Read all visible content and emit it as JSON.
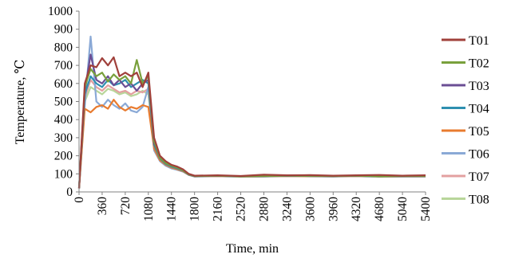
{
  "chart_data": {
    "type": "line",
    "title": "",
    "xlabel": "Time, min",
    "ylabel": "Temperature, ℃",
    "xlim": [
      0,
      5400
    ],
    "ylim": [
      0,
      1000
    ],
    "x_ticks": [
      0,
      360,
      720,
      1080,
      1440,
      1800,
      2160,
      2520,
      2880,
      3240,
      3600,
      3960,
      4320,
      4680,
      5040,
      5400
    ],
    "y_ticks": [
      0,
      100,
      200,
      300,
      400,
      500,
      600,
      700,
      800,
      900,
      1000
    ],
    "grid": false,
    "legend_position": "right",
    "x": [
      0,
      90,
      180,
      270,
      360,
      450,
      540,
      630,
      720,
      810,
      900,
      990,
      1080,
      1170,
      1260,
      1350,
      1440,
      1530,
      1620,
      1710,
      1800,
      2160,
      2520,
      2880,
      3240,
      3600,
      3960,
      4320,
      4680,
      5040,
      5400
    ],
    "series": [
      {
        "name": "T01",
        "color": "#a0403b",
        "values": [
          20,
          600,
          700,
          690,
          740,
          700,
          745,
          640,
          660,
          640,
          660,
          580,
          660,
          300,
          200,
          170,
          150,
          140,
          125,
          100,
          90,
          92,
          88,
          95,
          92,
          93,
          90,
          92,
          94,
          90,
          92
        ]
      },
      {
        "name": "T02",
        "color": "#79a03c",
        "values": [
          20,
          580,
          680,
          640,
          660,
          610,
          650,
          620,
          640,
          600,
          730,
          600,
          640,
          280,
          190,
          160,
          145,
          135,
          120,
          98,
          88,
          90,
          86,
          88,
          90,
          89,
          88,
          90,
          86,
          88,
          88
        ]
      },
      {
        "name": "T03",
        "color": "#6b4e94",
        "values": [
          20,
          560,
          760,
          620,
          600,
          640,
          590,
          620,
          580,
          600,
          560,
          600,
          620,
          270,
          190,
          160,
          145,
          135,
          120,
          97,
          88,
          90,
          86,
          88,
          90,
          89,
          88,
          90,
          86,
          88,
          88
        ]
      },
      {
        "name": "T04",
        "color": "#2e8fb0",
        "values": [
          20,
          540,
          640,
          600,
          580,
          620,
          590,
          600,
          620,
          580,
          600,
          620,
          600,
          260,
          185,
          155,
          140,
          130,
          118,
          96,
          87,
          89,
          86,
          87,
          89,
          88,
          87,
          89,
          86,
          87,
          87
        ]
      },
      {
        "name": "T05",
        "color": "#e87b2f",
        "values": [
          20,
          460,
          440,
          470,
          480,
          460,
          510,
          470,
          450,
          470,
          460,
          480,
          470,
          240,
          175,
          150,
          135,
          125,
          115,
          95,
          86,
          88,
          85,
          86,
          88,
          87,
          86,
          88,
          85,
          86,
          86
        ]
      },
      {
        "name": "T06",
        "color": "#8aa9d6",
        "values": [
          20,
          480,
          860,
          500,
          470,
          510,
          480,
          460,
          490,
          450,
          440,
          470,
          580,
          230,
          170,
          145,
          130,
          122,
          112,
          94,
          85,
          87,
          84,
          85,
          87,
          86,
          85,
          87,
          84,
          85,
          85
        ]
      },
      {
        "name": "T07",
        "color": "#e3a0a0",
        "values": [
          20,
          520,
          620,
          580,
          560,
          590,
          570,
          550,
          560,
          540,
          560,
          550,
          570,
          250,
          180,
          150,
          138,
          128,
          116,
          95,
          86,
          88,
          85,
          86,
          88,
          87,
          86,
          88,
          85,
          86,
          86
        ]
      },
      {
        "name": "T08",
        "color": "#b8d69a",
        "values": [
          20,
          500,
          580,
          560,
          540,
          570,
          560,
          540,
          550,
          530,
          540,
          560,
          540,
          245,
          178,
          148,
          136,
          126,
          114,
          94,
          86,
          88,
          85,
          86,
          88,
          87,
          86,
          88,
          85,
          86,
          86
        ]
      }
    ]
  }
}
